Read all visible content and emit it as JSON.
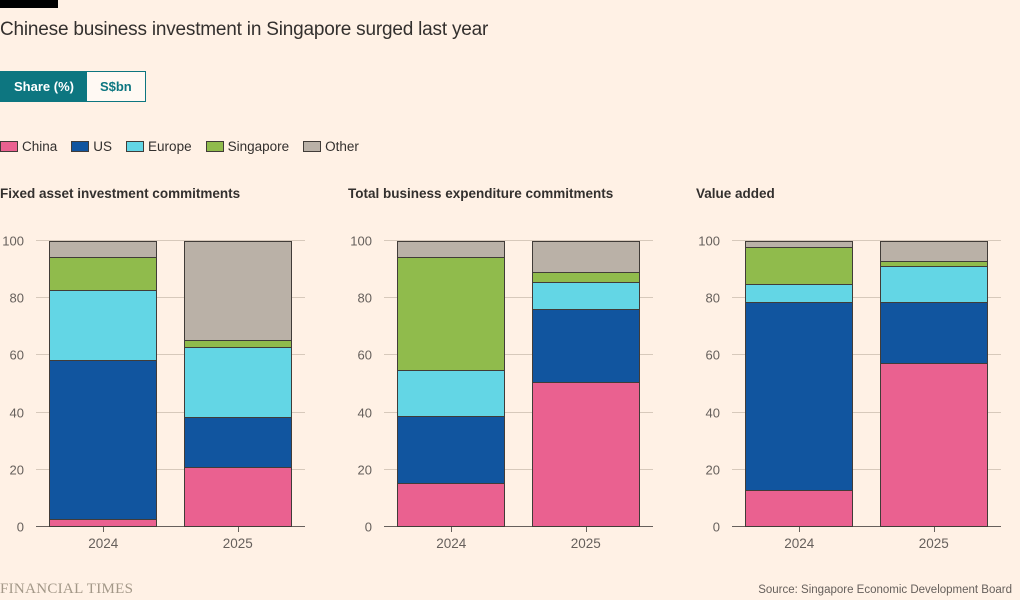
{
  "page": {
    "title": "Chinese business investment in Singapore surged last year",
    "background_color": "#FFF1E5",
    "accent_teal": "#0D7680"
  },
  "toggle": {
    "options": [
      {
        "label": "Share (%)",
        "selected": true
      },
      {
        "label": "S$bn",
        "selected": false
      }
    ]
  },
  "legend": [
    {
      "label": "China",
      "color": "#EA6190"
    },
    {
      "label": "US",
      "color": "#11559F"
    },
    {
      "label": "Europe",
      "color": "#63D6E5"
    },
    {
      "label": "Singapore",
      "color": "#90BB4C"
    },
    {
      "label": "Other",
      "color": "#BAB1A7"
    }
  ],
  "chart_data": [
    {
      "type": "bar",
      "stacked": true,
      "title": "Fixed asset investment commitments",
      "categories": [
        "2024",
        "2025"
      ],
      "series": [
        {
          "name": "China",
          "values": [
            2.5,
            20.5
          ]
        },
        {
          "name": "US",
          "values": [
            55.5,
            17.5
          ]
        },
        {
          "name": "Europe",
          "values": [
            24.5,
            24.5
          ]
        },
        {
          "name": "Singapore",
          "values": [
            11.5,
            2.5
          ]
        },
        {
          "name": "Other",
          "values": [
            6,
            35
          ]
        }
      ],
      "ylabel": "Share (%)",
      "ylim": [
        0,
        100
      ],
      "yticks": [
        0,
        20,
        40,
        60,
        80,
        100
      ],
      "grid": true,
      "legend_position": "top"
    },
    {
      "type": "bar",
      "stacked": true,
      "title": "Total business expenditure commitments",
      "categories": [
        "2024",
        "2025"
      ],
      "series": [
        {
          "name": "China",
          "values": [
            15,
            50.5
          ]
        },
        {
          "name": "US",
          "values": [
            23.5,
            25.5
          ]
        },
        {
          "name": "Europe",
          "values": [
            16,
            9.5
          ]
        },
        {
          "name": "Singapore",
          "values": [
            39.5,
            3.5
          ]
        },
        {
          "name": "Other",
          "values": [
            6,
            11
          ]
        }
      ],
      "ylabel": "Share (%)",
      "ylim": [
        0,
        100
      ],
      "yticks": [
        0,
        20,
        40,
        60,
        80,
        100
      ],
      "grid": true,
      "legend_position": "top"
    },
    {
      "type": "bar",
      "stacked": true,
      "title": "Value added",
      "categories": [
        "2024",
        "2025"
      ],
      "series": [
        {
          "name": "China",
          "values": [
            12.5,
            57
          ]
        },
        {
          "name": "US",
          "values": [
            66,
            21.5
          ]
        },
        {
          "name": "Europe",
          "values": [
            6,
            12.5
          ]
        },
        {
          "name": "Singapore",
          "values": [
            13,
            1.5
          ]
        },
        {
          "name": "Other",
          "values": [
            2.5,
            7.5
          ]
        }
      ],
      "ylabel": "Share (%)",
      "ylim": [
        0,
        100
      ],
      "yticks": [
        0,
        20,
        40,
        60,
        80,
        100
      ],
      "grid": true,
      "legend_position": "top"
    }
  ],
  "footer": {
    "brand": "FINANCIAL TIMES",
    "source": "Source: Singapore Economic Development Board"
  }
}
